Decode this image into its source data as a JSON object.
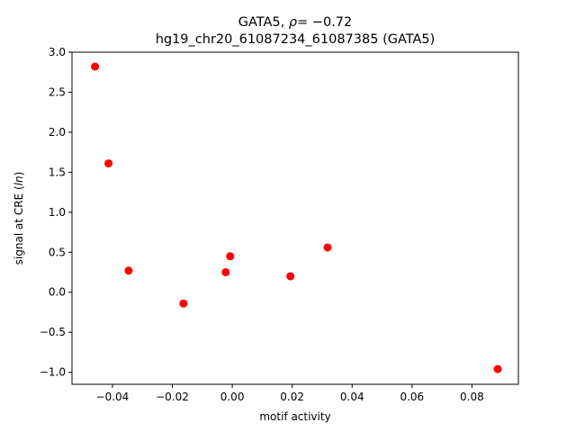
{
  "chart_data": {
    "type": "scatter",
    "title_line1_prefix": "GATA5, ",
    "title_line1_rho": "ρ",
    "title_line1_suffix": "= −0.72",
    "title_line2": "hg19_chr20_61087234_61087385 (GATA5)",
    "xlabel": "motif activity",
    "ylabel_prefix": "signal at CRE (",
    "ylabel_italic": "ln",
    "ylabel_suffix": ")",
    "xlim": [
      -0.0535,
      0.0955
    ],
    "ylim": [
      -1.15,
      3.0
    ],
    "xticks": [
      -0.04,
      -0.02,
      0.0,
      0.02,
      0.04,
      0.06,
      0.08
    ],
    "xtick_labels": [
      "−0.04",
      "−0.02",
      "0.00",
      "0.02",
      "0.04",
      "0.06",
      "0.08"
    ],
    "yticks": [
      -1.0,
      -0.5,
      0.0,
      0.5,
      1.0,
      1.5,
      2.0,
      2.5,
      3.0
    ],
    "ytick_labels": [
      "−1.0",
      "−0.5",
      "0.0",
      "0.5",
      "1.0",
      "1.5",
      "2.0",
      "2.5",
      "3.0"
    ],
    "grid": false,
    "marker_color": "#ff0000",
    "points": [
      {
        "x": -0.0458,
        "y": 2.82
      },
      {
        "x": -0.0413,
        "y": 1.61
      },
      {
        "x": -0.0346,
        "y": 0.27
      },
      {
        "x": -0.0163,
        "y": -0.14
      },
      {
        "x": -0.0022,
        "y": 0.25
      },
      {
        "x": -0.0007,
        "y": 0.45
      },
      {
        "x": 0.0194,
        "y": 0.2
      },
      {
        "x": 0.0318,
        "y": 0.56
      },
      {
        "x": 0.0886,
        "y": -0.96
      }
    ]
  }
}
